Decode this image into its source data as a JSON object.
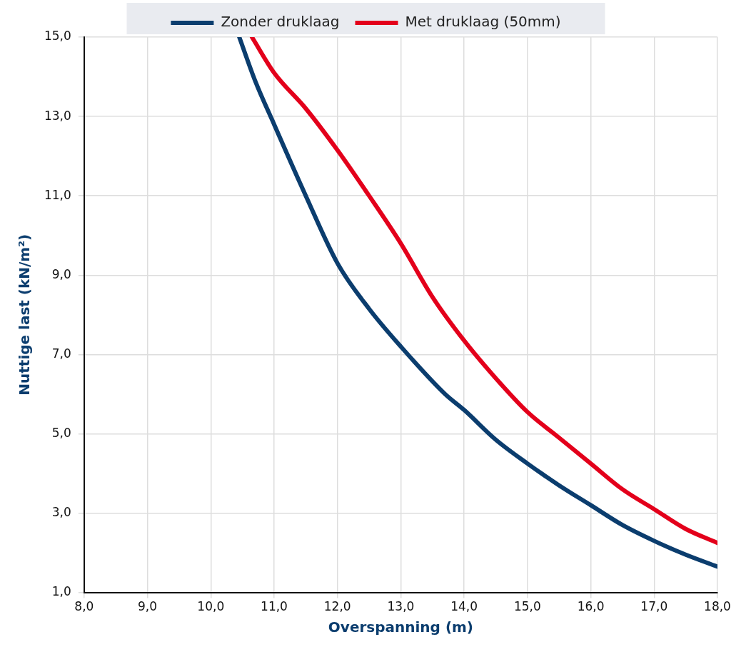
{
  "chart_data": {
    "type": "line",
    "xlabel": "Overspanning (m)",
    "ylabel": "Nuttige last (kN/m²)",
    "xlim": [
      8,
      18
    ],
    "ylim": [
      1,
      15
    ],
    "xticks": [
      {
        "value": 8,
        "label": "8,0"
      },
      {
        "value": 9,
        "label": "9,0"
      },
      {
        "value": 10,
        "label": "10,0"
      },
      {
        "value": 11,
        "label": "11,0"
      },
      {
        "value": 12,
        "label": "12,0"
      },
      {
        "value": 13,
        "label": "13,0"
      },
      {
        "value": 14,
        "label": "14,0"
      },
      {
        "value": 15,
        "label": "15,0"
      },
      {
        "value": 16,
        "label": "16,0"
      },
      {
        "value": 17,
        "label": "17,0"
      },
      {
        "value": 18,
        "label": "18,0"
      }
    ],
    "yticks": [
      {
        "value": 1,
        "label": "1,0"
      },
      {
        "value": 3,
        "label": "3,0"
      },
      {
        "value": 5,
        "label": "5,0"
      },
      {
        "value": 7,
        "label": "7,0"
      },
      {
        "value": 9,
        "label": "9,0"
      },
      {
        "value": 11,
        "label": "11,0"
      },
      {
        "value": 13,
        "label": "13,0"
      },
      {
        "value": 15,
        "label": "15,0"
      }
    ],
    "grid": true,
    "legend": "top",
    "marker": "none",
    "line_style": "solid",
    "series": [
      {
        "name": "Zonder druklaag",
        "color": "#0b3d6e",
        "x": [
          10.45,
          10.7,
          11,
          11.5,
          12,
          12.5,
          13,
          13.7,
          14,
          14.5,
          15,
          15.5,
          16,
          16.5,
          17,
          17.5,
          18
        ],
        "values": [
          15,
          13.9,
          12.8,
          11,
          9.3,
          8.15,
          7.2,
          6,
          5.6,
          4.85,
          4.25,
          3.7,
          3.2,
          2.7,
          2.3,
          1.95,
          1.65
        ]
      },
      {
        "name": "Met druklaag (50mm)",
        "color": "#e3001b",
        "x": [
          10.65,
          11,
          11.5,
          12,
          12.5,
          13,
          13.5,
          14,
          14.5,
          15,
          15.5,
          16,
          16.5,
          17,
          17.5,
          18
        ],
        "values": [
          15,
          14.1,
          13.2,
          12.15,
          11,
          9.8,
          8.45,
          7.35,
          6.4,
          5.55,
          4.9,
          4.25,
          3.6,
          3.1,
          2.6,
          2.25
        ]
      }
    ]
  }
}
